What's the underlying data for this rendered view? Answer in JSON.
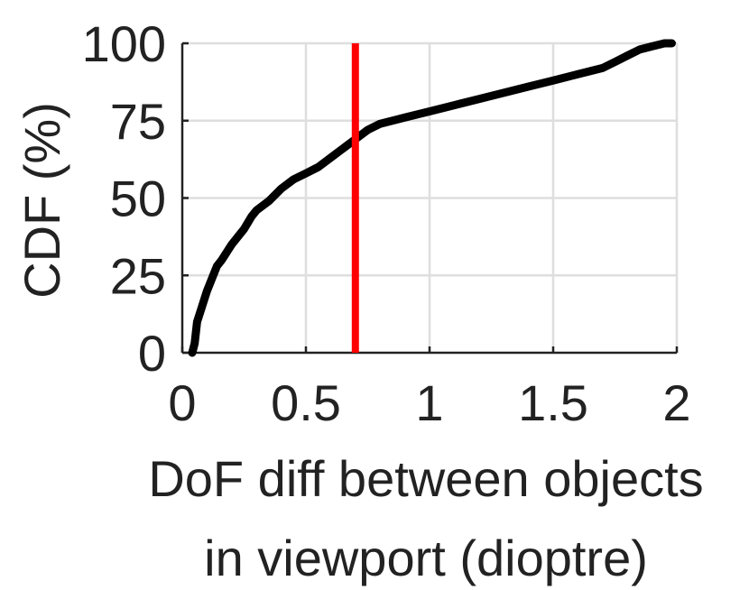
{
  "chart_data": {
    "type": "line",
    "title": "",
    "xlabel_lines": [
      "DoF diff between objects",
      "in viewport (dioptre)"
    ],
    "ylabel": "CDF (%)",
    "xlim": [
      0,
      2
    ],
    "ylim": [
      0,
      100
    ],
    "x_ticks": [
      0,
      0.5,
      1,
      1.5,
      2
    ],
    "x_tick_labels": [
      "0",
      "0.5",
      "1",
      "1.5",
      "2"
    ],
    "y_ticks": [
      0,
      25,
      50,
      75,
      100
    ],
    "y_tick_labels": [
      "0",
      "25",
      "50",
      "75",
      "100"
    ],
    "grid": true,
    "series": [
      {
        "color": "#000000",
        "x": [
          0.04,
          0.05,
          0.06,
          0.08,
          0.1,
          0.12,
          0.14,
          0.16,
          0.2,
          0.25,
          0.28,
          0.3,
          0.35,
          0.4,
          0.45,
          0.5,
          0.55,
          0.6,
          0.65,
          0.7,
          0.75,
          0.8,
          0.9,
          1.0,
          1.1,
          1.2,
          1.3,
          1.4,
          1.5,
          1.6,
          1.7,
          1.75,
          1.8,
          1.85,
          1.9,
          1.95,
          1.98
        ],
        "y": [
          0,
          3,
          10,
          15,
          20,
          24,
          28,
          30,
          35,
          40,
          44,
          46,
          49,
          53,
          56,
          58,
          60,
          63,
          66,
          69,
          72,
          74,
          76,
          78,
          80,
          82,
          84,
          86,
          88,
          90,
          92,
          94,
          96,
          98,
          99,
          100,
          100
        ]
      }
    ],
    "reference_line": {
      "orientation": "vertical",
      "x": 0.7,
      "color": "#ff0000"
    }
  }
}
